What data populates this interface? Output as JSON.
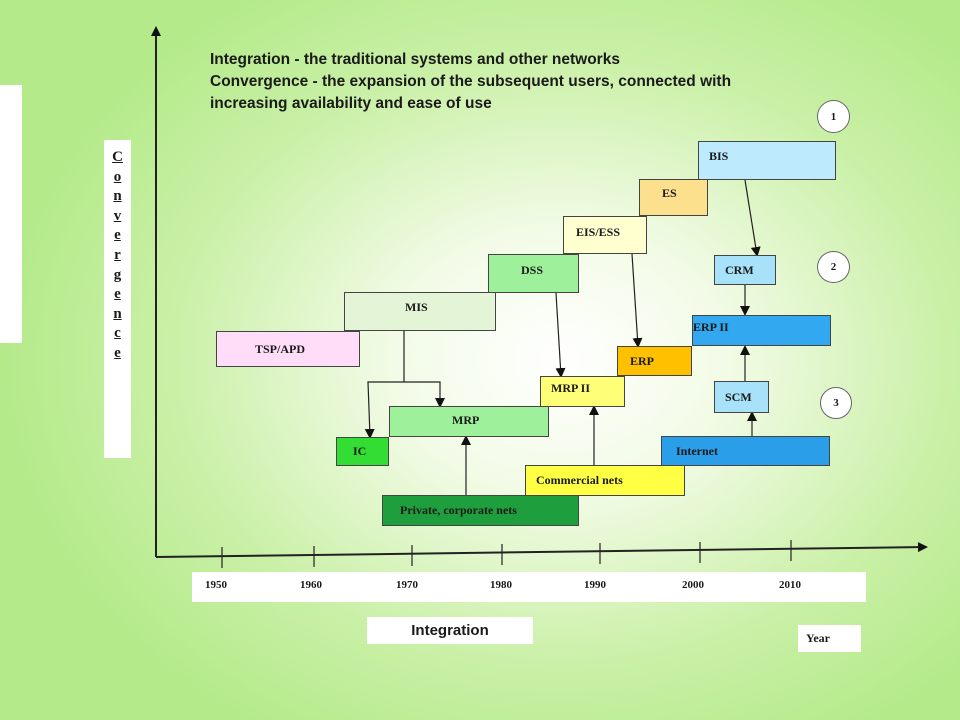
{
  "intro": {
    "line1": "Integration - the traditional systems and other networks",
    "line2": "Convergence - the expansion of the subsequent users, connected with",
    "line3": "increasing availability and ease of use"
  },
  "y_axis_letters": [
    "C",
    "o",
    "n",
    "v",
    "e",
    "r",
    "g",
    "e",
    "n",
    "c",
    "e"
  ],
  "x_axis": {
    "label": "Integration",
    "unit_label": "Year",
    "years": [
      "1950",
      "1960",
      "1970",
      "1980",
      "1990",
      "2000",
      "2010"
    ]
  },
  "boxes": {
    "tsp": {
      "label": "TSP/APD",
      "color": "#ffdcf7"
    },
    "mis": {
      "label": "MIS",
      "color": "#e4f4d6"
    },
    "dss": {
      "label": "DSS",
      "color": "#9ef09a"
    },
    "eis": {
      "label": "EIS/ESS",
      "color": "#ffffd0"
    },
    "es": {
      "label": "ES",
      "color": "#fce08e"
    },
    "bis": {
      "label": "BIS",
      "color": "#bdeafc"
    },
    "crm": {
      "label": "CRM",
      "color": "#a7e2fa"
    },
    "erp2": {
      "label": "ERP II",
      "color": "#32a8f0"
    },
    "erp": {
      "label": "ERP",
      "color": "#ffc000"
    },
    "mrp2": {
      "label": "MRP II",
      "color": "#ffff77"
    },
    "scm": {
      "label": "SCM",
      "color": "#a7e2fa"
    },
    "mrp": {
      "label": "MRP",
      "color": "#9ef09a"
    },
    "ic": {
      "label": "IC",
      "color": "#33dd33"
    },
    "internet": {
      "label": "Internet",
      "color": "#2a9ee8"
    },
    "commercial": {
      "label": "Commercial nets",
      "color": "#ffff44"
    },
    "private": {
      "label": "Private, corporate nets",
      "color": "#1f9e3e"
    }
  },
  "circles": {
    "c1": "1",
    "c2": "2",
    "c3": "3"
  }
}
